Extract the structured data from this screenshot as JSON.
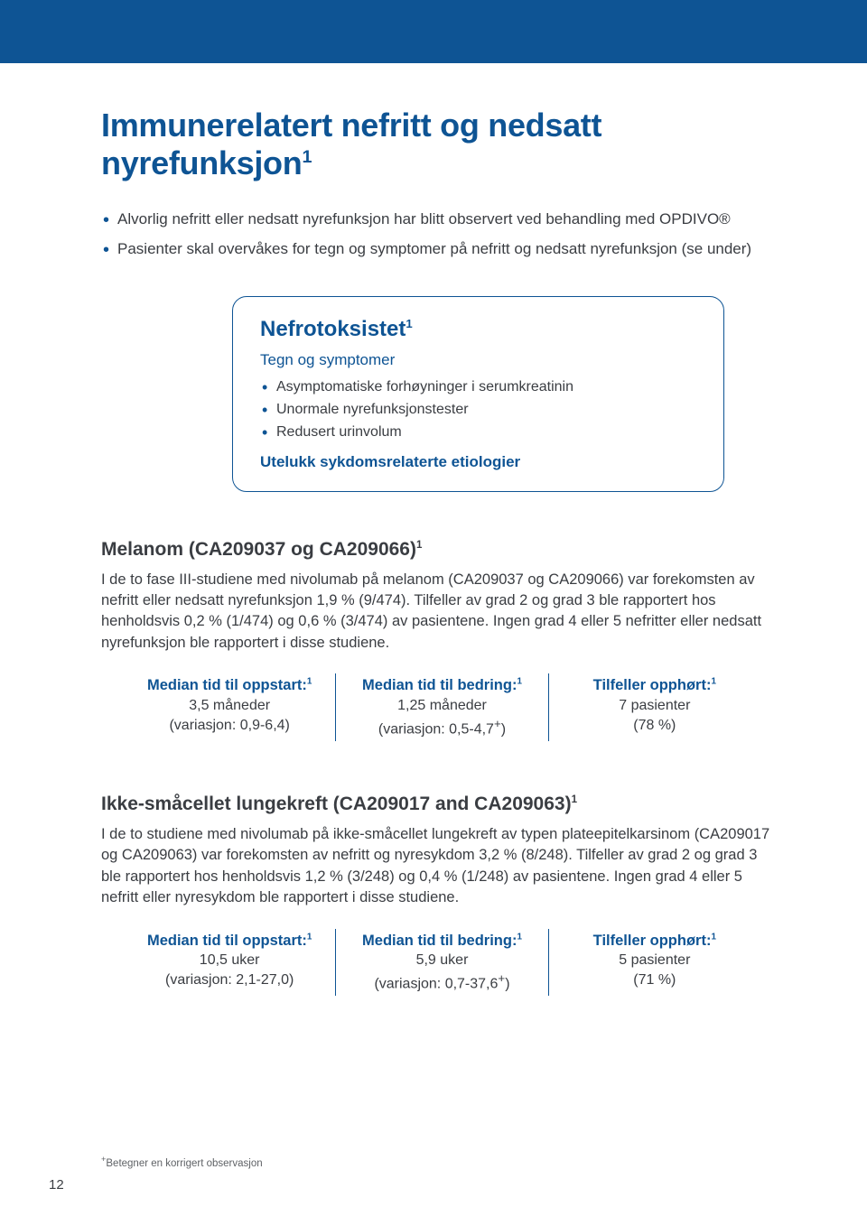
{
  "colors": {
    "brand": "#0e5494",
    "text": "#3a3d42",
    "page_bg": "#ffffff"
  },
  "header": {
    "title_html": "Immunerelatert nefritt og nedsatt nyrefunksjon<sup>1</sup>"
  },
  "intro_bullets": [
    "Alvorlig nefritt eller nedsatt nyrefunksjon har blitt observert ved behandling med OPDIVO®",
    "Pasienter skal overvåkes for tegn og symptomer på nefritt og nedsatt nyrefunksjon (se under)"
  ],
  "info_box": {
    "title_html": "Nefrotoksistet<sup>1</sup>",
    "subtitle": "Tegn og symptomer",
    "symptoms": [
      "Asymptomatiske forhøyninger i serumkreatinin",
      "Unormale nyrefunksjonstester",
      "Redusert urinvolum"
    ],
    "exclude": "Utelukk sykdomsrelaterte etiologier"
  },
  "studies": [
    {
      "title_html": "Melanom (CA209037 og CA209066)<sup>1</sup>",
      "body": "I de to fase III-studiene med nivolumab på melanom (CA209037 og CA209066) var forekomsten av nefritt eller nedsatt nyrefunksjon 1,9 % (9/474). Tilfeller av grad 2 og grad 3 ble rapportert hos henholdsvis 0,2 % (1/474) og 0,6 % (3/474) av pasientene. Ingen grad 4 eller 5 nefritter eller nedsatt nyrefunksjon ble rapportert i disse studiene.",
      "stats": [
        {
          "label_html": "Median tid til oppstart:<sup>1</sup>",
          "value": "3,5 måneder",
          "range": "(variasjon: 0,9-6,4)"
        },
        {
          "label_html": "Median tid til bedring:<sup>1</sup>",
          "value": "1,25 måneder",
          "range_html": "(variasjon: 0,5-4,7<sup>+</sup>)"
        },
        {
          "label_html": "Tilfeller opphørt:<sup>1</sup>",
          "value": "7 pasienter",
          "range": "(78 %)"
        }
      ]
    },
    {
      "title_html": "Ikke-småcellet lungekreft (CA209017 and CA209063)<sup>1</sup>",
      "body": "I de to studiene med nivolumab på ikke-småcellet lungekreft av typen plateepitelkarsinom (CA209017 og CA209063) var forekomsten av nefritt og nyresykdom 3,2 % (8/248). Tilfeller av grad 2 og grad 3 ble rapportert hos henholdsvis 1,2 % (3/248) og 0,4 % (1/248) av pasientene. Ingen grad 4 eller 5 nefritt eller nyresykdom ble rapportert i disse studiene.",
      "stats": [
        {
          "label_html": "Median tid til oppstart:<sup>1</sup>",
          "value": "10,5 uker",
          "range": "(variasjon: 2,1-27,0)"
        },
        {
          "label_html": "Median tid til bedring:<sup>1</sup>",
          "value": "5,9 uker",
          "range_html": "(variasjon: 0,7-37,6<sup>+</sup>)"
        },
        {
          "label_html": "Tilfeller opphørt:<sup>1</sup>",
          "value": "5 pasienter",
          "range": "(71 %)"
        }
      ]
    }
  ],
  "footnote_html": "<sup>+</sup>Betegner en korrigert observasjon",
  "page_number": "12"
}
